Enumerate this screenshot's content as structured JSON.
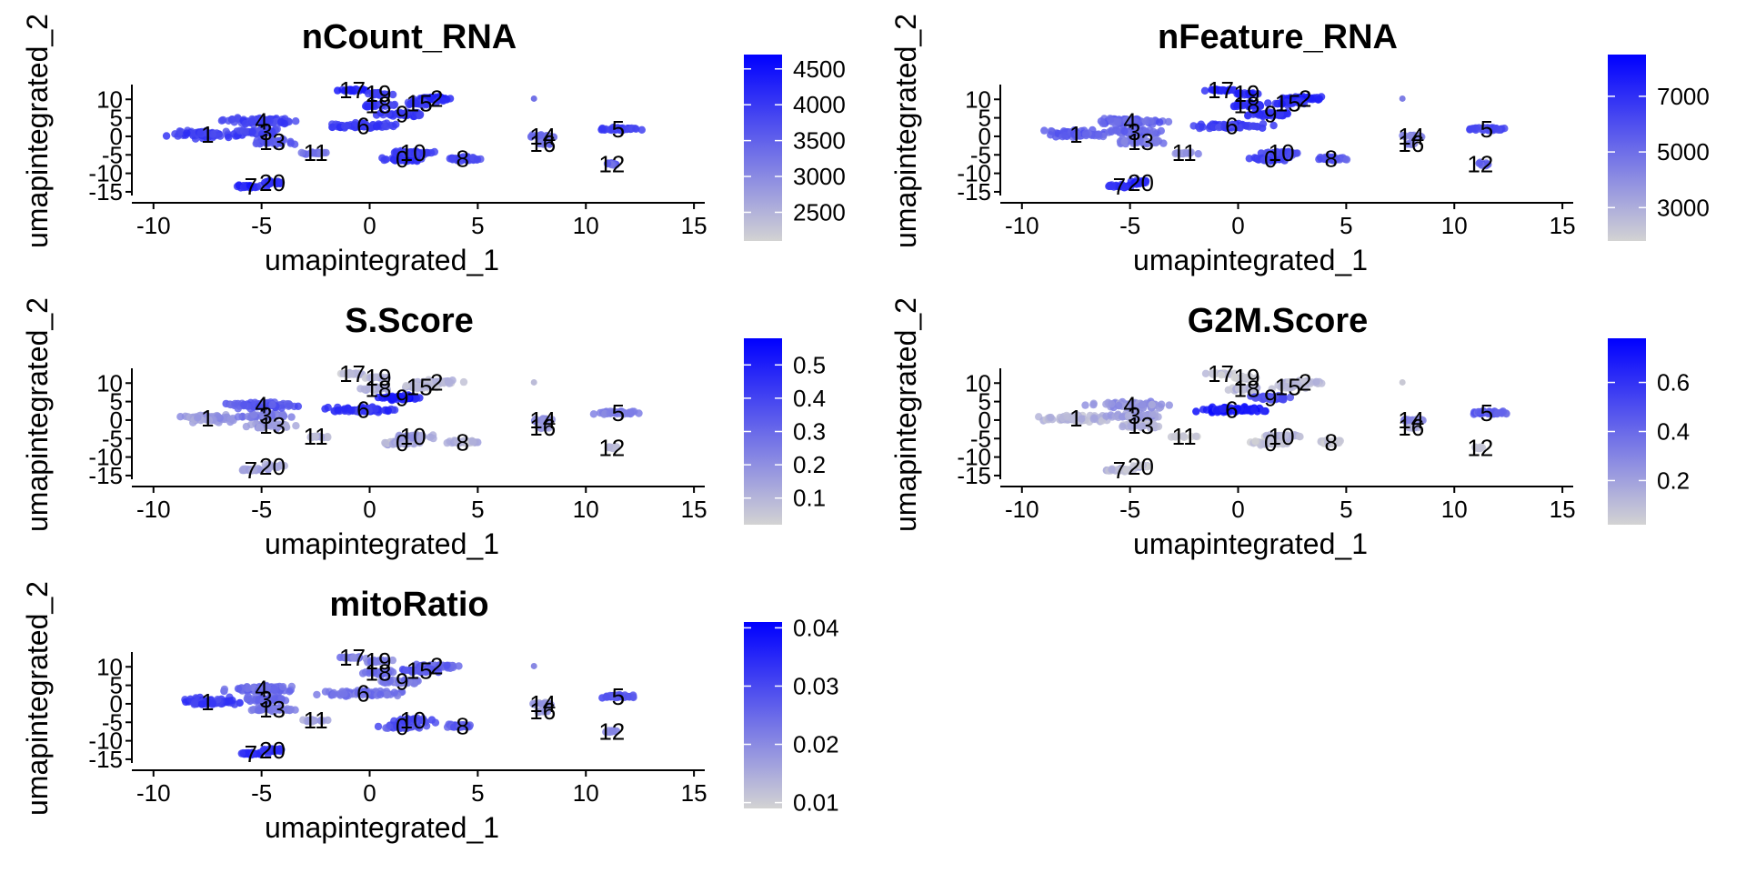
{
  "colors": {
    "low": "#d3d3d3",
    "high": "#0000ff",
    "axis": "#000000"
  },
  "chart_data": [
    {
      "type": "scatter",
      "title": "nCount_RNA",
      "xlabel": "umapintegrated_1",
      "ylabel": "umapintegrated_2",
      "xlim": [
        -11,
        15.5
      ],
      "ylim": [
        -16,
        14
      ],
      "xticks": [
        -10,
        -5,
        0,
        5,
        10,
        15
      ],
      "yticks": [
        10,
        5,
        0,
        -5,
        -10,
        -15
      ],
      "legend_ticks": [
        4500,
        4000,
        3500,
        3000,
        2500
      ],
      "color_range": [
        2100,
        4700
      ],
      "clusters": [
        {
          "label": "0",
          "x": 1.5,
          "y": -6.2,
          "value": 4100
        },
        {
          "label": "1",
          "x": -7.5,
          "y": 0.5,
          "value": 3900
        },
        {
          "label": "2",
          "x": 3.1,
          "y": 10.2,
          "value": 4200
        },
        {
          "label": "3",
          "x": -4.8,
          "y": 1.2,
          "value": 3800
        },
        {
          "label": "4",
          "x": -5.0,
          "y": 4.0,
          "value": 3800
        },
        {
          "label": "5",
          "x": 11.5,
          "y": 2.0,
          "value": 3900
        },
        {
          "label": "6",
          "x": -0.3,
          "y": 2.8,
          "value": 3950
        },
        {
          "label": "7",
          "x": -5.5,
          "y": -13.5,
          "value": 4200
        },
        {
          "label": "8",
          "x": 4.3,
          "y": -6.0,
          "value": 3800
        },
        {
          "label": "9",
          "x": 1.5,
          "y": 6.0,
          "value": 4000
        },
        {
          "label": "10",
          "x": 2.0,
          "y": -4.5,
          "value": 3950
        },
        {
          "label": "11",
          "x": -2.5,
          "y": -4.5,
          "value": 3300
        },
        {
          "label": "12",
          "x": 11.2,
          "y": -7.5,
          "value": 3500
        },
        {
          "label": "13",
          "x": -4.5,
          "y": -1.5,
          "value": 3600
        },
        {
          "label": "14",
          "x": 8.0,
          "y": 0.0,
          "value": 3300
        },
        {
          "label": "15",
          "x": 2.3,
          "y": 9.0,
          "value": 4000
        },
        {
          "label": "16",
          "x": 8.0,
          "y": -2.0,
          "value": 3300
        },
        {
          "label": "17",
          "x": -0.8,
          "y": 12.5,
          "value": 4300
        },
        {
          "label": "18",
          "x": 0.4,
          "y": 8.5,
          "value": 4000
        },
        {
          "label": "19",
          "x": 0.4,
          "y": 11.5,
          "value": 4100
        },
        {
          "label": "20",
          "x": -4.5,
          "y": -12.5,
          "value": 4200
        }
      ]
    },
    {
      "type": "scatter",
      "title": "nFeature_RNA",
      "xlabel": "umapintegrated_1",
      "ylabel": "umapintegrated_2",
      "xlim": [
        -11,
        15.5
      ],
      "ylim": [
        -16,
        14
      ],
      "xticks": [
        -10,
        -5,
        0,
        5,
        10,
        15
      ],
      "yticks": [
        10,
        5,
        0,
        -5,
        -10,
        -15
      ],
      "legend_ticks": [
        7000,
        5000,
        3000
      ],
      "color_range": [
        1800,
        8500
      ],
      "clusters": [
        {
          "label": "0",
          "x": 1.5,
          "y": -6.2,
          "value": 6300
        },
        {
          "label": "1",
          "x": -7.5,
          "y": 0.5,
          "value": 5500
        },
        {
          "label": "2",
          "x": 3.1,
          "y": 10.2,
          "value": 7400
        },
        {
          "label": "3",
          "x": -4.8,
          "y": 1.2,
          "value": 5200
        },
        {
          "label": "4",
          "x": -5.0,
          "y": 4.0,
          "value": 5300
        },
        {
          "label": "5",
          "x": 11.5,
          "y": 2.0,
          "value": 6200
        },
        {
          "label": "6",
          "x": -0.3,
          "y": 2.8,
          "value": 6500
        },
        {
          "label": "7",
          "x": -5.5,
          "y": -13.5,
          "value": 6800
        },
        {
          "label": "8",
          "x": 4.3,
          "y": -6.0,
          "value": 5800
        },
        {
          "label": "9",
          "x": 1.5,
          "y": 6.0,
          "value": 6900
        },
        {
          "label": "10",
          "x": 2.0,
          "y": -4.5,
          "value": 6200
        },
        {
          "label": "11",
          "x": -2.5,
          "y": -4.5,
          "value": 3800
        },
        {
          "label": "12",
          "x": 11.2,
          "y": -7.5,
          "value": 5500
        },
        {
          "label": "13",
          "x": -4.5,
          "y": -1.5,
          "value": 4600
        },
        {
          "label": "14",
          "x": 8.0,
          "y": 0.0,
          "value": 4500
        },
        {
          "label": "15",
          "x": 2.3,
          "y": 9.0,
          "value": 7000
        },
        {
          "label": "16",
          "x": 8.0,
          "y": -2.0,
          "value": 4200
        },
        {
          "label": "17",
          "x": -0.8,
          "y": 12.5,
          "value": 7500
        },
        {
          "label": "18",
          "x": 0.4,
          "y": 8.5,
          "value": 7000
        },
        {
          "label": "19",
          "x": 0.4,
          "y": 11.5,
          "value": 7200
        },
        {
          "label": "20",
          "x": -4.5,
          "y": -12.5,
          "value": 7000
        }
      ]
    },
    {
      "type": "scatter",
      "title": "S.Score",
      "xlabel": "umapintegrated_1",
      "ylabel": "umapintegrated_2",
      "xlim": [
        -11,
        15.5
      ],
      "ylim": [
        -16,
        14
      ],
      "xticks": [
        -10,
        -5,
        0,
        5,
        10,
        15
      ],
      "yticks": [
        10,
        5,
        0,
        -5,
        -10,
        -15
      ],
      "legend_ticks": [
        0.5,
        0.4,
        0.3,
        0.2,
        0.1
      ],
      "color_range": [
        0.02,
        0.58
      ],
      "clusters": [
        {
          "label": "0",
          "x": 1.5,
          "y": -6.2,
          "value": 0.12
        },
        {
          "label": "1",
          "x": -7.5,
          "y": 0.5,
          "value": 0.18
        },
        {
          "label": "2",
          "x": 3.1,
          "y": 10.2,
          "value": 0.1
        },
        {
          "label": "3",
          "x": -4.8,
          "y": 1.2,
          "value": 0.25
        },
        {
          "label": "4",
          "x": -5.0,
          "y": 4.0,
          "value": 0.35
        },
        {
          "label": "5",
          "x": 11.5,
          "y": 2.0,
          "value": 0.25
        },
        {
          "label": "6",
          "x": -0.3,
          "y": 2.8,
          "value": 0.45
        },
        {
          "label": "7",
          "x": -5.5,
          "y": -13.5,
          "value": 0.15
        },
        {
          "label": "8",
          "x": 4.3,
          "y": -6.0,
          "value": 0.1
        },
        {
          "label": "9",
          "x": 1.5,
          "y": 6.0,
          "value": 0.5
        },
        {
          "label": "10",
          "x": 2.0,
          "y": -4.5,
          "value": 0.15
        },
        {
          "label": "11",
          "x": -2.5,
          "y": -4.5,
          "value": 0.1
        },
        {
          "label": "12",
          "x": 11.2,
          "y": -7.5,
          "value": 0.1
        },
        {
          "label": "13",
          "x": -4.5,
          "y": -1.5,
          "value": 0.15
        },
        {
          "label": "14",
          "x": 8.0,
          "y": 0.0,
          "value": 0.2
        },
        {
          "label": "15",
          "x": 2.3,
          "y": 9.0,
          "value": 0.1
        },
        {
          "label": "16",
          "x": 8.0,
          "y": -2.0,
          "value": 0.15
        },
        {
          "label": "17",
          "x": -0.8,
          "y": 12.5,
          "value": 0.08
        },
        {
          "label": "18",
          "x": 0.4,
          "y": 8.5,
          "value": 0.1
        },
        {
          "label": "19",
          "x": 0.4,
          "y": 11.5,
          "value": 0.08
        },
        {
          "label": "20",
          "x": -4.5,
          "y": -12.5,
          "value": 0.12
        }
      ]
    },
    {
      "type": "scatter",
      "title": "G2M.Score",
      "xlabel": "umapintegrated_1",
      "ylabel": "umapintegrated_2",
      "xlim": [
        -11,
        15.5
      ],
      "ylim": [
        -16,
        14
      ],
      "xticks": [
        -10,
        -5,
        0,
        5,
        10,
        15
      ],
      "yticks": [
        10,
        5,
        0,
        -5,
        -10,
        -15
      ],
      "legend_ticks": [
        0.6,
        0.4,
        0.2
      ],
      "color_range": [
        0.02,
        0.78
      ],
      "clusters": [
        {
          "label": "0",
          "x": 1.5,
          "y": -6.2,
          "value": 0.08
        },
        {
          "label": "1",
          "x": -7.5,
          "y": 0.5,
          "value": 0.12
        },
        {
          "label": "2",
          "x": 3.1,
          "y": 10.2,
          "value": 0.1
        },
        {
          "label": "3",
          "x": -4.8,
          "y": 1.2,
          "value": 0.2
        },
        {
          "label": "4",
          "x": -5.0,
          "y": 4.0,
          "value": 0.25
        },
        {
          "label": "5",
          "x": 11.5,
          "y": 2.0,
          "value": 0.45
        },
        {
          "label": "6",
          "x": -0.3,
          "y": 2.8,
          "value": 0.7
        },
        {
          "label": "7",
          "x": -5.5,
          "y": -13.5,
          "value": 0.1
        },
        {
          "label": "8",
          "x": 4.3,
          "y": -6.0,
          "value": 0.06
        },
        {
          "label": "9",
          "x": 1.5,
          "y": 6.0,
          "value": 0.5
        },
        {
          "label": "10",
          "x": 2.0,
          "y": -4.5,
          "value": 0.1
        },
        {
          "label": "11",
          "x": -2.5,
          "y": -4.5,
          "value": 0.06
        },
        {
          "label": "12",
          "x": 11.2,
          "y": -7.5,
          "value": 0.08
        },
        {
          "label": "13",
          "x": -4.5,
          "y": -1.5,
          "value": 0.12
        },
        {
          "label": "14",
          "x": 8.0,
          "y": 0.0,
          "value": 0.3
        },
        {
          "label": "15",
          "x": 2.3,
          "y": 9.0,
          "value": 0.1
        },
        {
          "label": "16",
          "x": 8.0,
          "y": -2.0,
          "value": 0.2
        },
        {
          "label": "17",
          "x": -0.8,
          "y": 12.5,
          "value": 0.06
        },
        {
          "label": "18",
          "x": 0.4,
          "y": 8.5,
          "value": 0.1
        },
        {
          "label": "19",
          "x": 0.4,
          "y": 11.5,
          "value": 0.06
        },
        {
          "label": "20",
          "x": -4.5,
          "y": -12.5,
          "value": 0.1
        }
      ]
    },
    {
      "type": "scatter",
      "title": "mitoRatio",
      "xlabel": "umapintegrated_1",
      "ylabel": "umapintegrated_2",
      "xlim": [
        -11,
        15.5
      ],
      "ylim": [
        -16,
        14
      ],
      "xticks": [
        -10,
        -5,
        0,
        5,
        10,
        15
      ],
      "yticks": [
        10,
        5,
        0,
        -5,
        -10,
        -15
      ],
      "legend_ticks": [
        0.04,
        0.03,
        0.02,
        0.01
      ],
      "color_range": [
        0.009,
        0.041
      ],
      "clusters": [
        {
          "label": "0",
          "x": 1.5,
          "y": -6.2,
          "value": 0.028
        },
        {
          "label": "1",
          "x": -7.5,
          "y": 0.5,
          "value": 0.032
        },
        {
          "label": "2",
          "x": 3.1,
          "y": 10.2,
          "value": 0.026
        },
        {
          "label": "3",
          "x": -4.8,
          "y": 1.2,
          "value": 0.026
        },
        {
          "label": "4",
          "x": -5.0,
          "y": 4.0,
          "value": 0.025
        },
        {
          "label": "5",
          "x": 11.5,
          "y": 2.0,
          "value": 0.028
        },
        {
          "label": "6",
          "x": -0.3,
          "y": 2.8,
          "value": 0.024
        },
        {
          "label": "7",
          "x": -5.5,
          "y": -13.5,
          "value": 0.035
        },
        {
          "label": "8",
          "x": 4.3,
          "y": -6.0,
          "value": 0.027
        },
        {
          "label": "9",
          "x": 1.5,
          "y": 6.0,
          "value": 0.022
        },
        {
          "label": "10",
          "x": 2.0,
          "y": -4.5,
          "value": 0.03
        },
        {
          "label": "11",
          "x": -2.5,
          "y": -4.5,
          "value": 0.016
        },
        {
          "label": "12",
          "x": 11.2,
          "y": -7.5,
          "value": 0.02
        },
        {
          "label": "13",
          "x": -4.5,
          "y": -1.5,
          "value": 0.022
        },
        {
          "label": "14",
          "x": 8.0,
          "y": 0.0,
          "value": 0.018
        },
        {
          "label": "15",
          "x": 2.3,
          "y": 9.0,
          "value": 0.028
        },
        {
          "label": "16",
          "x": 8.0,
          "y": -2.0,
          "value": 0.018
        },
        {
          "label": "17",
          "x": -0.8,
          "y": 12.5,
          "value": 0.022
        },
        {
          "label": "18",
          "x": 0.4,
          "y": 8.5,
          "value": 0.024
        },
        {
          "label": "19",
          "x": 0.4,
          "y": 11.5,
          "value": 0.022
        },
        {
          "label": "20",
          "x": -4.5,
          "y": -12.5,
          "value": 0.033
        }
      ]
    }
  ]
}
